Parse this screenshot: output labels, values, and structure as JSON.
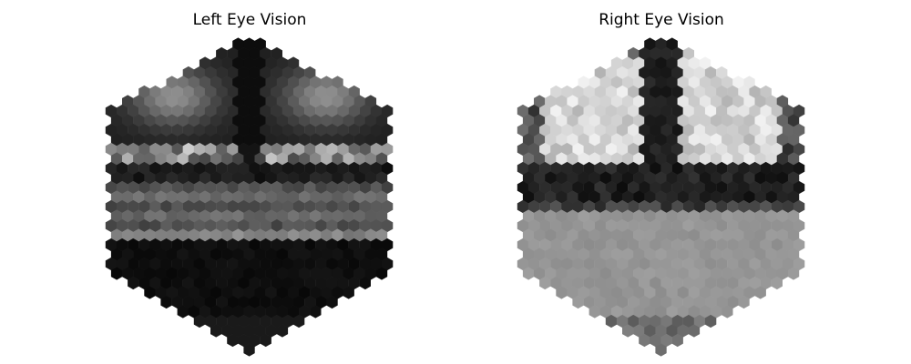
{
  "panels": [
    {
      "title": "Left Eye Vision"
    },
    {
      "title": "Right Eye Vision"
    }
  ],
  "colormap": "grayscale",
  "axes": "off"
}
